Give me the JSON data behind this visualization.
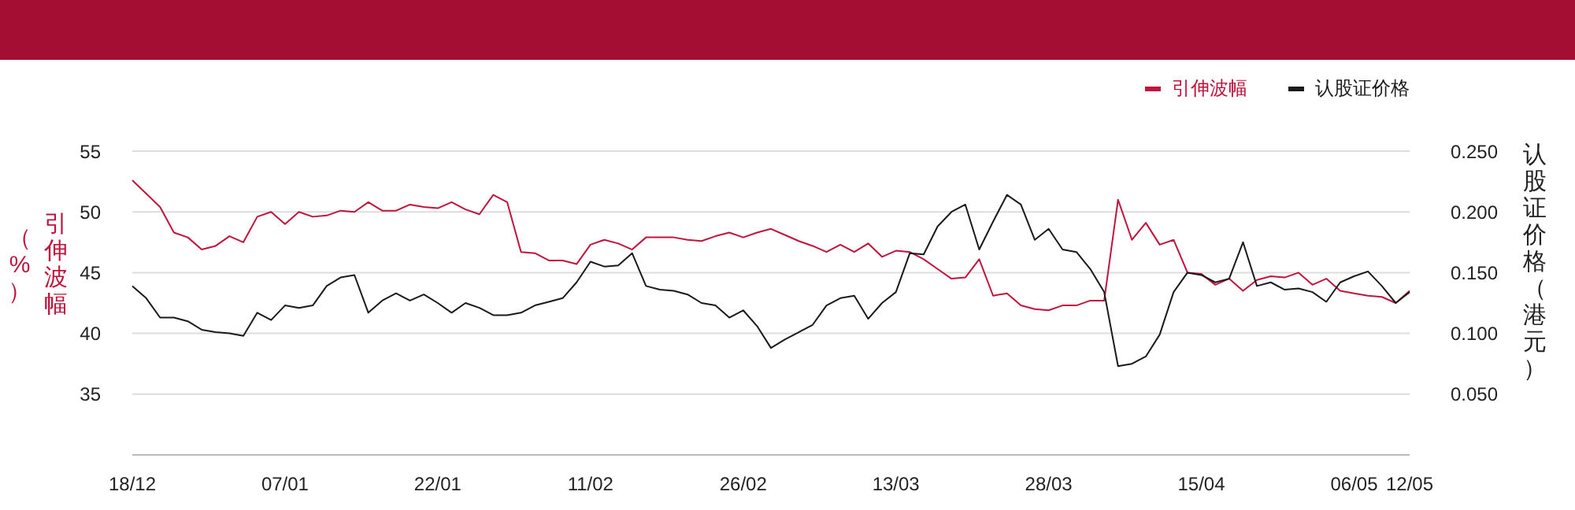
{
  "chart_data": {
    "type": "line",
    "ylabel": "引伸波幅（%）",
    "y2label": "认股证价格（港元）",
    "categories": [
      "18/12",
      null,
      null,
      null,
      null,
      null,
      null,
      null,
      null,
      null,
      null,
      "07/01",
      null,
      null,
      null,
      null,
      null,
      null,
      null,
      null,
      null,
      null,
      "22/01",
      null,
      null,
      null,
      null,
      null,
      null,
      null,
      null,
      null,
      null,
      "11/02",
      null,
      null,
      null,
      null,
      null,
      null,
      null,
      null,
      null,
      null,
      "26/02",
      null,
      null,
      null,
      null,
      null,
      null,
      null,
      null,
      null,
      null,
      "13/03",
      null,
      null,
      null,
      null,
      null,
      null,
      null,
      null,
      null,
      null,
      "28/03",
      null,
      null,
      null,
      null,
      null,
      null,
      null,
      null,
      null,
      null,
      "15/04",
      null,
      null,
      null,
      null,
      null,
      null,
      null,
      null,
      null,
      null,
      "06/05",
      null,
      null,
      null,
      "12/05"
    ],
    "series": [
      {
        "name": "引伸波幅",
        "color": "#c0143c",
        "axis": "y",
        "values": [
          52.6,
          51.5,
          50.4,
          48.3,
          47.9,
          46.9,
          47.2,
          48.0,
          47.5,
          49.6,
          50.0,
          49.0,
          50.0,
          49.6,
          49.7,
          50.1,
          50.0,
          50.8,
          50.1,
          50.1,
          50.6,
          50.4,
          50.3,
          50.8,
          50.2,
          49.8,
          51.4,
          50.8,
          46.7,
          46.6,
          46.0,
          46.0,
          45.7,
          47.3,
          47.7,
          47.4,
          46.9,
          47.9,
          47.9,
          47.9,
          47.7,
          47.6,
          48.0,
          48.3,
          47.9,
          48.3,
          48.6,
          48.1,
          47.6,
          47.2,
          46.7,
          47.3,
          46.7,
          47.4,
          46.3,
          46.8,
          46.7,
          46.1,
          45.3,
          44.5,
          44.6,
          46.1,
          43.1,
          43.3,
          42.3,
          42.0,
          41.9,
          42.3,
          42.3,
          42.7,
          42.7,
          51.0,
          47.7,
          49.1,
          47.3,
          47.7,
          45.0,
          44.9,
          44.0,
          44.5,
          43.5,
          44.4,
          44.7,
          44.6,
          45.0,
          44.0,
          44.5,
          43.5,
          43.3,
          43.1,
          43.0,
          42.5,
          43.5
        ]
      },
      {
        "name": "认股证价格",
        "color": "#1a1a1a",
        "axis": "y2",
        "values": [
          0.139,
          0.129,
          0.113,
          0.113,
          0.11,
          0.103,
          0.101,
          0.1,
          0.098,
          0.117,
          0.111,
          0.123,
          0.121,
          0.123,
          0.139,
          0.146,
          0.148,
          0.117,
          0.127,
          0.133,
          0.127,
          0.132,
          0.125,
          0.117,
          0.125,
          0.121,
          0.115,
          0.115,
          0.117,
          0.123,
          0.126,
          0.129,
          0.142,
          0.159,
          0.155,
          0.156,
          0.166,
          0.139,
          0.136,
          0.135,
          0.132,
          0.125,
          0.123,
          0.113,
          0.119,
          0.106,
          0.088,
          0.095,
          0.101,
          0.107,
          0.123,
          0.129,
          0.131,
          0.112,
          0.125,
          0.134,
          0.166,
          0.165,
          0.188,
          0.2,
          0.206,
          0.169,
          0.192,
          0.214,
          0.206,
          0.177,
          0.186,
          0.169,
          0.167,
          0.153,
          0.134,
          0.073,
          0.075,
          0.081,
          0.099,
          0.134,
          0.15,
          0.148,
          0.142,
          0.145,
          0.175,
          0.139,
          0.142,
          0.136,
          0.137,
          0.134,
          0.126,
          0.142,
          0.147,
          0.151,
          0.139,
          0.125,
          0.134
        ]
      }
    ],
    "ylim": [
      30,
      55
    ],
    "yticks": [
      35,
      40,
      45,
      50,
      55
    ],
    "y2lim": [
      0,
      0.25
    ],
    "y2ticks": [
      {
        "value": 0.05,
        "label": "0.050"
      },
      {
        "value": 0.1,
        "label": "0.100"
      },
      {
        "value": 0.15,
        "label": "0.150"
      },
      {
        "value": 0.2,
        "label": "0.200"
      },
      {
        "value": 0.25,
        "label": "0.250"
      }
    ],
    "grid": "y",
    "legend": "top right"
  }
}
